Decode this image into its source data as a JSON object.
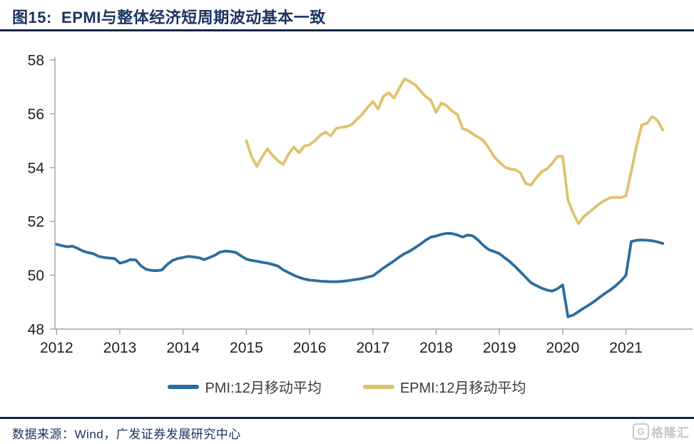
{
  "header": {
    "title": "图15:  EPMI与整体经济短周期波动基本一致"
  },
  "footer": {
    "source": "数据来源：Wind，广发证券发展研究中心",
    "logo_letter": "G",
    "logo_text": "格隆汇"
  },
  "legend": [
    {
      "label": "PMI:12月移动平均",
      "color": "#2b6d9e"
    },
    {
      "label": "EPMI:12月移动平均",
      "color": "#ddc36c"
    }
  ],
  "colors": {
    "pmi_line": "#2b6d9e",
    "epmi_line": "#ddc36c",
    "title_navy": "#1b3461",
    "axis_gray": "#a3a3a3"
  },
  "chart_data": {
    "type": "line",
    "title": "EPMI与整体经济短周期波动基本一致",
    "x_unit": "month",
    "x_tick_labels": [
      "2012",
      "2013",
      "2014",
      "2015",
      "2016",
      "2017",
      "2018",
      "2019",
      "2020",
      "2021"
    ],
    "ylim": [
      48,
      58
    ],
    "y_ticks": [
      48,
      50,
      52,
      54,
      56,
      58
    ],
    "grid": false,
    "legend_position": "bottom",
    "series": [
      {
        "id": "pmi-line",
        "name": "PMI:12月移动平均",
        "color": "#2b6d9e",
        "start": "2012-01",
        "values": [
          51.15,
          51.1,
          51.06,
          51.08,
          51.0,
          50.9,
          50.84,
          50.8,
          50.7,
          50.66,
          50.64,
          50.62,
          50.45,
          50.5,
          50.58,
          50.57,
          50.35,
          50.22,
          50.18,
          50.17,
          50.2,
          50.4,
          50.55,
          50.62,
          50.66,
          50.7,
          50.68,
          50.65,
          50.58,
          50.66,
          50.74,
          50.86,
          50.9,
          50.88,
          50.85,
          50.72,
          50.6,
          50.55,
          50.52,
          50.48,
          50.45,
          50.4,
          50.34,
          50.2,
          50.1,
          50.0,
          49.92,
          49.86,
          49.82,
          49.8,
          49.78,
          49.77,
          49.76,
          49.76,
          49.77,
          49.79,
          49.82,
          49.85,
          49.88,
          49.93,
          49.98,
          50.12,
          50.27,
          50.4,
          50.53,
          50.68,
          50.8,
          50.9,
          51.02,
          51.15,
          51.3,
          51.42,
          51.46,
          51.52,
          51.56,
          51.55,
          51.5,
          51.42,
          51.5,
          51.46,
          51.3,
          51.1,
          50.95,
          50.88,
          50.8,
          50.65,
          50.5,
          50.32,
          50.12,
          49.92,
          49.72,
          49.62,
          49.52,
          49.45,
          49.41,
          49.5,
          49.64,
          48.46,
          48.52,
          48.65,
          48.78,
          48.9,
          49.03,
          49.18,
          49.32,
          49.45,
          49.6,
          49.78,
          50.0,
          51.25,
          51.3,
          51.31,
          51.3,
          51.28,
          51.24,
          51.18
        ]
      },
      {
        "id": "epmi-line",
        "name": "EPMI:12月移动平均",
        "color": "#ddc36c",
        "start": "2015-01",
        "values": [
          55.0,
          54.4,
          54.05,
          54.4,
          54.7,
          54.45,
          54.25,
          54.12,
          54.5,
          54.76,
          54.55,
          54.8,
          54.85,
          55.0,
          55.2,
          55.32,
          55.18,
          55.45,
          55.5,
          55.52,
          55.6,
          55.8,
          55.98,
          56.24,
          56.45,
          56.18,
          56.65,
          56.78,
          56.58,
          56.95,
          57.3,
          57.2,
          57.08,
          56.86,
          56.64,
          56.5,
          56.05,
          56.4,
          56.3,
          56.1,
          55.98,
          55.45,
          55.38,
          55.25,
          55.13,
          55.0,
          54.73,
          54.4,
          54.2,
          54.02,
          53.95,
          53.92,
          53.8,
          53.4,
          53.35,
          53.62,
          53.85,
          53.95,
          54.15,
          54.42,
          54.42,
          52.8,
          52.3,
          51.92,
          52.18,
          52.34,
          52.5,
          52.66,
          52.78,
          52.88,
          52.9,
          52.88,
          52.95,
          53.85,
          54.8,
          55.58,
          55.65,
          55.9,
          55.75,
          55.4
        ]
      }
    ]
  }
}
